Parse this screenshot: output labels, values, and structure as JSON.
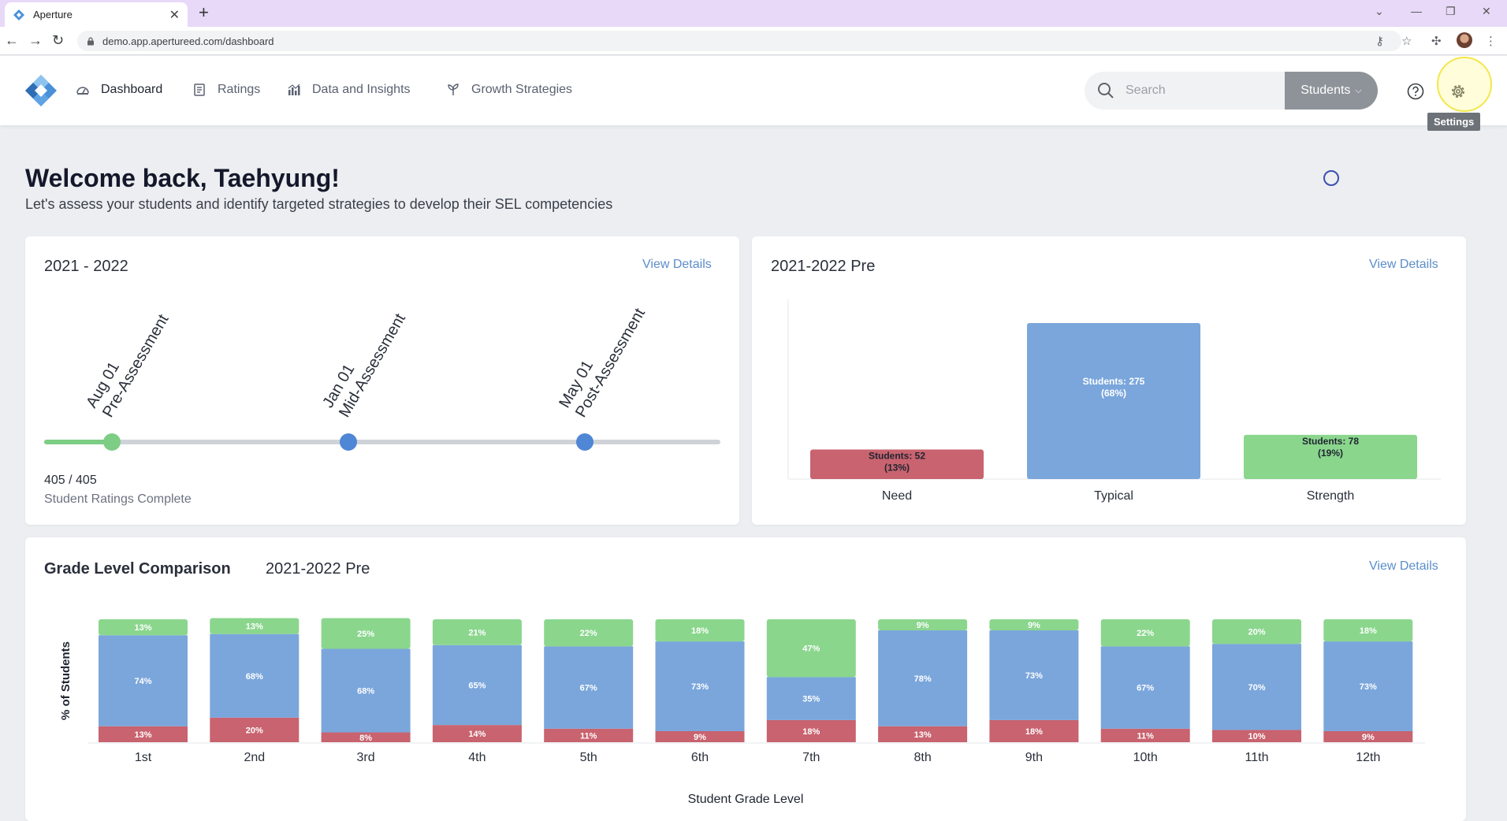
{
  "browser": {
    "tab_title": "Aperture",
    "url": "demo.app.apertureed.com/dashboard"
  },
  "nav": {
    "items": [
      {
        "label": "Dashboard",
        "icon": "dashboard-icon",
        "active": true
      },
      {
        "label": "Ratings",
        "icon": "ratings-icon",
        "active": false
      },
      {
        "label": "Data and Insights",
        "icon": "chart-icon",
        "active": false
      },
      {
        "label": "Growth Strategies",
        "icon": "sprout-icon",
        "active": false
      }
    ],
    "search_placeholder": "Search",
    "scope_label": "Students",
    "settings_tooltip": "Settings"
  },
  "welcome": {
    "title": "Welcome back, Taehyung!",
    "subtitle": "Let's assess your students and identify targeted strategies to develop their SEL competencies"
  },
  "timeline_card": {
    "title": "2021 - 2022",
    "view_details": "View Details",
    "milestones": [
      {
        "date": "Aug 01",
        "name": "Pre-Assessment",
        "status": "complete"
      },
      {
        "date": "Jan 01",
        "name": "Mid-Assessment",
        "status": "upcoming"
      },
      {
        "date": "May 01",
        "name": "Post-Assessment",
        "status": "upcoming"
      }
    ],
    "ratings_count": "405 / 405",
    "ratings_label": "Student Ratings Complete"
  },
  "distribution_card": {
    "title": "2021-2022 Pre",
    "view_details": "View Details"
  },
  "grade_card": {
    "title": "Grade Level Comparison",
    "period": "2021-2022 Pre",
    "view_details": "View Details"
  },
  "colors": {
    "need": "#c8636f",
    "typical": "#7aa6db",
    "strength": "#8ad68d",
    "accent": "#5b8ec9",
    "dot": "#4f86d6"
  },
  "chart_data": [
    {
      "type": "bar",
      "categories": [
        "Need",
        "Typical",
        "Strength"
      ],
      "values": [
        52,
        275,
        78
      ],
      "data_labels": [
        [
          "Students: 52",
          "(13%)"
        ],
        [
          "Students: 275",
          "(68%)"
        ],
        [
          "Students: 78",
          "(19%)"
        ]
      ],
      "ylim": [
        0,
        300
      ],
      "grid": false
    },
    {
      "type": "bar",
      "stacked": true,
      "categories": [
        "1st",
        "2nd",
        "3rd",
        "4th",
        "5th",
        "6th",
        "7th",
        "8th",
        "9th",
        "10th",
        "11th",
        "12th"
      ],
      "series": [
        {
          "key": "need",
          "values": [
            13,
            20,
            8,
            14,
            11,
            9,
            18,
            13,
            18,
            11,
            10,
            9
          ]
        },
        {
          "key": "typical",
          "values": [
            74,
            68,
            68,
            65,
            67,
            73,
            35,
            78,
            73,
            67,
            70,
            73
          ]
        },
        {
          "key": "strength",
          "values": [
            13,
            13,
            25,
            21,
            22,
            18,
            47,
            9,
            9,
            22,
            20,
            18
          ]
        }
      ],
      "xlabel": "Student Grade Level",
      "ylabel": "% of Students",
      "ylim": [
        0,
        100
      ]
    }
  ]
}
